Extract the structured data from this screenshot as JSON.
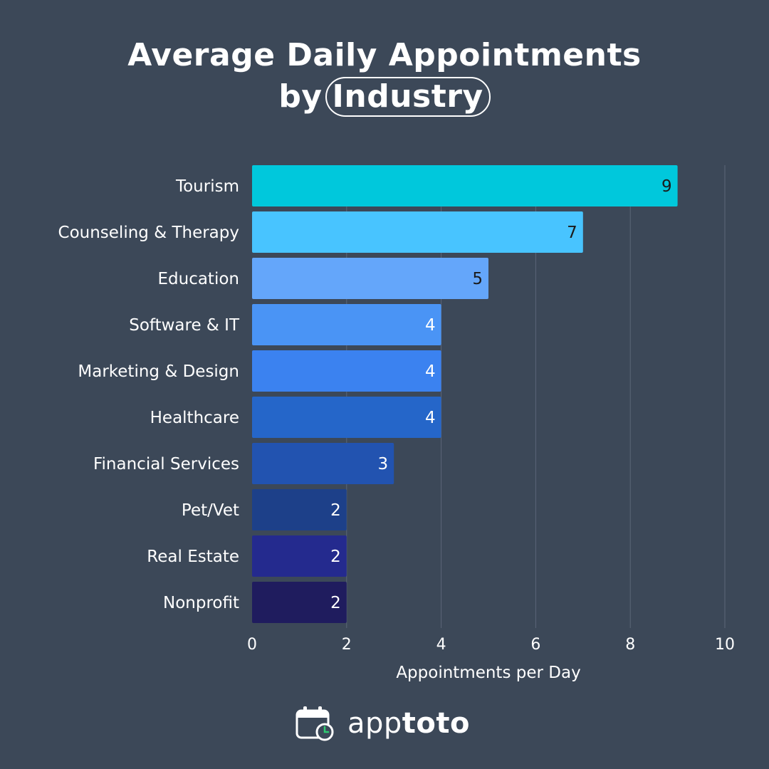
{
  "title": {
    "line1": "Average Daily Appointments",
    "line2_prefix": "by",
    "line2_highlight": "Industry"
  },
  "brand": {
    "light": "app",
    "bold": "toto",
    "icon": "calendar-clock-icon",
    "icon_accent": "#2ecc71"
  },
  "chart_data": {
    "type": "bar",
    "orientation": "horizontal",
    "categories": [
      "Tourism",
      "Counseling & Therapy",
      "Education",
      "Software & IT",
      "Marketing & Design",
      "Healthcare",
      "Financial Services",
      "Pet/Vet",
      "Real Estate",
      "Nonprofit"
    ],
    "values": [
      9,
      7,
      5,
      4,
      4,
      4,
      3,
      2,
      2,
      2
    ],
    "colors": [
      "#00c8dc",
      "#48c4ff",
      "#64a6fa",
      "#4a94f5",
      "#3b82f0",
      "#2566c9",
      "#2253b0",
      "#1d4089",
      "#242a8e",
      "#1f1c5e"
    ],
    "label_colors": [
      "#1b1b1b",
      "#1b1b1b",
      "#1b1b1b",
      "#ffffff",
      "#ffffff",
      "#ffffff",
      "#ffffff",
      "#ffffff",
      "#ffffff",
      "#ffffff"
    ],
    "xlabel": "Appointments per Day",
    "xlim": [
      0,
      10
    ],
    "xticks": [
      0,
      2,
      4,
      6,
      8,
      10
    ],
    "grid": true
  }
}
